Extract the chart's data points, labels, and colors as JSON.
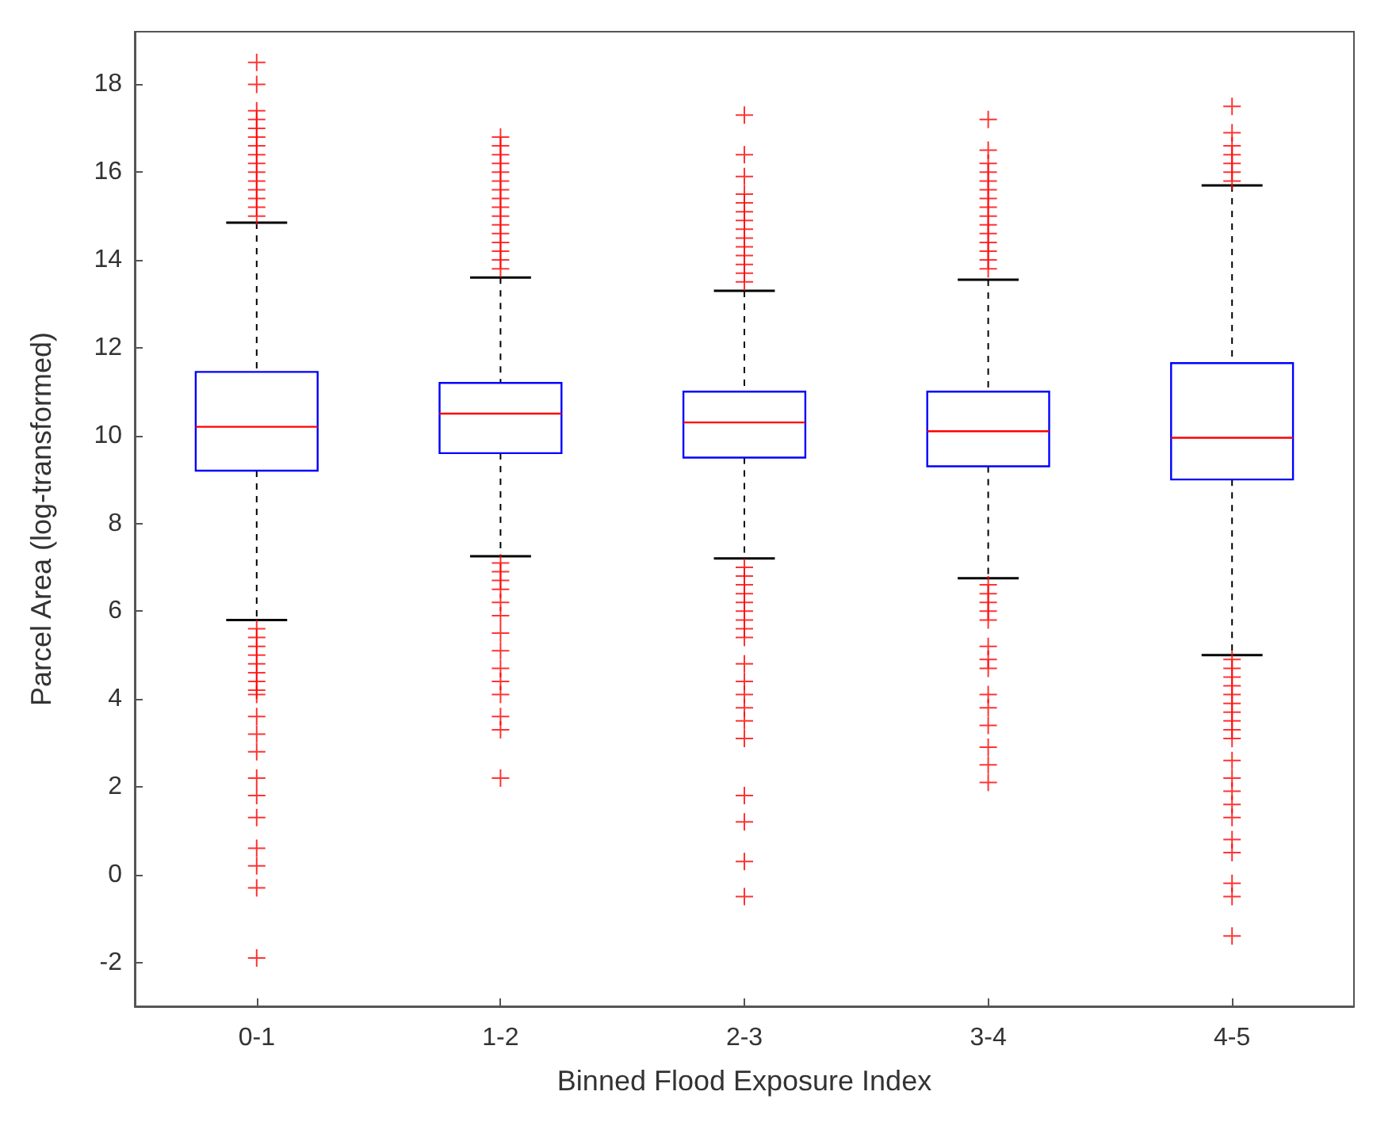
{
  "chart_data": {
    "type": "box",
    "xlabel": "Binned Flood Exposure Index",
    "ylabel": "Parcel Area (log-transformed)",
    "categories": [
      "0-1",
      "1-2",
      "2-3",
      "3-4",
      "4-5"
    ],
    "ylim": [
      -3,
      19.2
    ],
    "yticks": [
      -2,
      0,
      2,
      4,
      6,
      8,
      10,
      12,
      14,
      16,
      18
    ],
    "grid": false,
    "series": [
      {
        "color": "#0000ff",
        "boxes": [
          {
            "low": 5.8,
            "q1": 9.2,
            "median": 10.2,
            "q3": 11.45,
            "high": 14.85,
            "outliers": [
              18.5,
              18,
              17.4,
              17.2,
              17,
              16.8,
              16.6,
              16.4,
              16.2,
              16,
              15.8,
              15.6,
              15.4,
              15.2,
              15,
              5.6,
              5.4,
              5.2,
              5,
              4.8,
              4.6,
              4.4,
              4.2,
              4.1,
              3.6,
              3.2,
              2.8,
              2.2,
              1.8,
              1.3,
              0.6,
              0.2,
              -0.3,
              -1.9
            ]
          },
          {
            "low": 7.25,
            "q1": 9.6,
            "median": 10.5,
            "q3": 11.2,
            "high": 13.6,
            "outliers": [
              16.8,
              16.6,
              16.4,
              16.2,
              16,
              15.8,
              15.6,
              15.4,
              15.2,
              15,
              14.8,
              14.6,
              14.4,
              14.2,
              14,
              13.8,
              7.1,
              6.9,
              6.7,
              6.5,
              6.2,
              5.9,
              5.5,
              5.1,
              4.7,
              4.4,
              4.1,
              3.6,
              3.3,
              2.2
            ]
          },
          {
            "low": 7.2,
            "q1": 9.5,
            "median": 10.3,
            "q3": 11,
            "high": 13.3,
            "outliers": [
              17.3,
              16.4,
              15.9,
              15.5,
              15.3,
              15.1,
              14.9,
              14.7,
              14.5,
              14.3,
              14.1,
              13.9,
              13.7,
              13.5,
              7,
              6.8,
              6.6,
              6.4,
              6.2,
              6,
              5.8,
              5.6,
              5.4,
              4.8,
              4.4,
              4.1,
              3.8,
              3.5,
              3.1,
              1.8,
              1.2,
              0.3,
              -0.5
            ]
          },
          {
            "low": 6.75,
            "q1": 9.3,
            "median": 10.1,
            "q3": 11,
            "high": 13.55,
            "outliers": [
              17.2,
              16.5,
              16.2,
              16,
              15.8,
              15.6,
              15.4,
              15.2,
              15,
              14.8,
              14.6,
              14.4,
              14.2,
              14,
              13.8,
              6.6,
              6.4,
              6.2,
              6,
              5.8,
              5.2,
              4.9,
              4.7,
              4.1,
              3.8,
              3.4,
              2.9,
              2.5,
              2.1
            ]
          },
          {
            "low": 5,
            "q1": 9,
            "median": 9.95,
            "q3": 11.65,
            "high": 15.7,
            "outliers": [
              17.5,
              16.9,
              16.6,
              16.4,
              16.2,
              16,
              15.8,
              4.9,
              4.7,
              4.5,
              4.3,
              4.1,
              3.9,
              3.7,
              3.5,
              3.3,
              3.1,
              2.6,
              2.2,
              1.9,
              1.6,
              1.3,
              0.8,
              0.5,
              -0.2,
              -0.5,
              -1.4
            ]
          }
        ]
      }
    ]
  }
}
